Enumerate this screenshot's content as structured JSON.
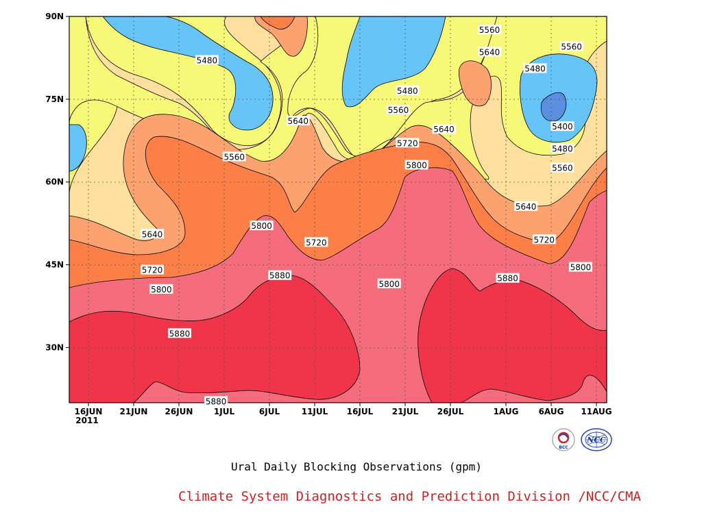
{
  "chart_data": {
    "type": "heatmap",
    "subtitle": "Ural Daily Blocking Observations (gpm)",
    "footer": "Climate System Diagnostics and Prediction Division /NCC/CMA",
    "y_ticks": [
      "90N",
      "75N",
      "60N",
      "45N",
      "30N"
    ],
    "x_ticks": [
      "16JUN",
      "21JUN",
      "26JUN",
      "1JUL",
      "6JUL",
      "11JUL",
      "16JUL",
      "21JUL",
      "26JUL",
      "1AUG",
      "6AUG",
      "11AUG"
    ],
    "x_year_label": "2011",
    "ylim_deg": [
      20,
      90
    ],
    "xlim_days": [
      "2011-06-16",
      "2011-08-13"
    ],
    "contour_levels": [
      5400,
      5480,
      5560,
      5640,
      5720,
      5800,
      5880
    ],
    "colors": {
      "below_5400": "#5a8fe0",
      "5400_5480": "#66c4f8",
      "5480_5560": "#f8f878",
      "5560_5640": "#fee09e",
      "5640_5720": "#fba26e",
      "5720_5800": "#fb7f46",
      "5800_5880": "#f56d7c",
      "above_5880": "#f0344a"
    },
    "contour_labels": [
      {
        "value": "5480",
        "lat": 82,
        "day": "2011-06-29"
      },
      {
        "value": "5560",
        "lat": 64.5,
        "day": "2011-07-02"
      },
      {
        "value": "5640",
        "lat": 71,
        "day": "2011-07-09"
      },
      {
        "value": "5800",
        "lat": 52,
        "day": "2011-07-05"
      },
      {
        "value": "5720",
        "lat": 49,
        "day": "2011-07-11"
      },
      {
        "value": "5880",
        "lat": 43,
        "day": "2011-07-07"
      },
      {
        "value": "5640",
        "lat": 50.5,
        "day": "2011-06-23"
      },
      {
        "value": "5720",
        "lat": 44,
        "day": "2011-06-23"
      },
      {
        "value": "5800",
        "lat": 40.5,
        "day": "2011-06-24"
      },
      {
        "value": "5880",
        "lat": 32.5,
        "day": "2011-06-26"
      },
      {
        "value": "5880",
        "lat": 20.2,
        "day": "2011-06-30"
      },
      {
        "value": "5800",
        "lat": 41.5,
        "day": "2011-07-19"
      },
      {
        "value": "5800",
        "lat": 63,
        "day": "2011-07-22"
      },
      {
        "value": "5720",
        "lat": 67,
        "day": "2011-07-21"
      },
      {
        "value": "5640",
        "lat": 69.5,
        "day": "2011-07-25"
      },
      {
        "value": "5560",
        "lat": 73,
        "day": "2011-07-20"
      },
      {
        "value": "5480",
        "lat": 76.5,
        "day": "2011-07-21"
      },
      {
        "value": "5560",
        "lat": 87.5,
        "day": "2011-07-30"
      },
      {
        "value": "5640",
        "lat": 83.5,
        "day": "2011-07-30"
      },
      {
        "value": "5480",
        "lat": 80.5,
        "day": "2011-08-04"
      },
      {
        "value": "5560",
        "lat": 84.5,
        "day": "2011-08-08"
      },
      {
        "value": "5400",
        "lat": 70,
        "day": "2011-08-07"
      },
      {
        "value": "5480",
        "lat": 66,
        "day": "2011-08-07"
      },
      {
        "value": "5560",
        "lat": 62.5,
        "day": "2011-08-07"
      },
      {
        "value": "5640",
        "lat": 55.5,
        "day": "2011-08-03"
      },
      {
        "value": "5720",
        "lat": 49.5,
        "day": "2011-08-05"
      },
      {
        "value": "5800",
        "lat": 44.5,
        "day": "2011-08-09"
      },
      {
        "value": "5880",
        "lat": 42.5,
        "day": "2011-08-01"
      }
    ],
    "logos": [
      "BCC",
      "NCC"
    ]
  }
}
